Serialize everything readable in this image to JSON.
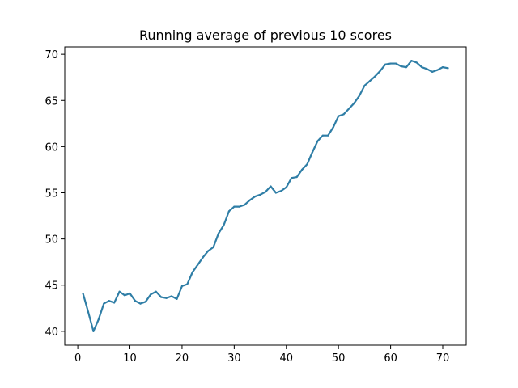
{
  "chart_data": {
    "type": "line",
    "title": "Running average of previous 10 scores",
    "xlabel": "",
    "ylabel": "",
    "xlim": [
      -2.5,
      74.5
    ],
    "ylim": [
      38.5,
      70.8
    ],
    "xticks": [
      0,
      10,
      20,
      30,
      40,
      50,
      60,
      70
    ],
    "yticks": [
      40,
      45,
      50,
      55,
      60,
      65,
      70
    ],
    "grid": false,
    "legend": "none",
    "line_color": "#2f7ea6",
    "series": [
      {
        "x": [
          1,
          2,
          3,
          4,
          5,
          6,
          7,
          8,
          9,
          10,
          11,
          12,
          13,
          14,
          15,
          16,
          17,
          18,
          19,
          20,
          21,
          22,
          23,
          24,
          25,
          26,
          27,
          28,
          29,
          30,
          31,
          32,
          33,
          34,
          35,
          36,
          37,
          38,
          39,
          40,
          41,
          42,
          43,
          44,
          45,
          46,
          47,
          48,
          49,
          50,
          51,
          52,
          53,
          54,
          55,
          56,
          57,
          58,
          59,
          60,
          61,
          62,
          63,
          64,
          65,
          66,
          67,
          68,
          69,
          70,
          71
        ],
        "y": [
          44.1,
          42.1,
          40.0,
          41.3,
          43.0,
          43.3,
          43.1,
          44.3,
          43.9,
          44.1,
          43.3,
          43.0,
          43.2,
          44.0,
          44.3,
          43.7,
          43.6,
          43.8,
          43.5,
          44.9,
          45.1,
          46.4,
          47.2,
          48.0,
          48.7,
          49.1,
          50.6,
          51.5,
          53.0,
          53.5,
          53.5,
          53.7,
          54.2,
          54.6,
          54.8,
          55.1,
          55.7,
          55.0,
          55.2,
          55.6,
          56.6,
          56.7,
          57.5,
          58.1,
          59.4,
          60.6,
          61.2,
          61.2,
          62.1,
          63.3,
          63.5,
          64.1,
          64.7,
          65.5,
          66.6,
          67.1,
          67.6,
          68.2,
          68.9,
          69.0,
          69.0,
          68.7,
          68.6,
          69.3,
          69.1,
          68.6,
          68.4,
          68.1,
          68.3,
          68.6,
          68.5
        ]
      }
    ]
  }
}
